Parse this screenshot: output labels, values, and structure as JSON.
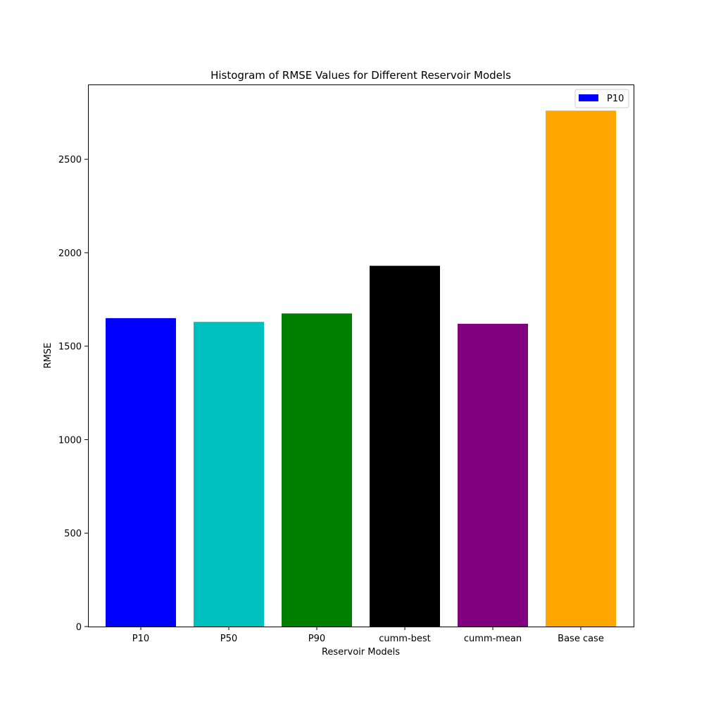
{
  "chart_data": {
    "type": "bar",
    "title": "Histogram of RMSE Values for Different Reservoir Models",
    "xlabel": "Reservoir Models",
    "ylabel": "RMSE",
    "categories": [
      "P10",
      "P50",
      "P90",
      "cumm-best",
      "cumm-mean",
      "Base case"
    ],
    "values": [
      1650,
      1630,
      1675,
      1930,
      1620,
      2760
    ],
    "colors": [
      "#0000ff",
      "#00bfbf",
      "#008000",
      "#000000",
      "#800080",
      "#ffa500"
    ],
    "ylim": [
      0,
      2900
    ],
    "yticks": [
      0,
      500,
      1000,
      1500,
      2000,
      2500
    ],
    "grid": false,
    "legend": {
      "position": "top-right",
      "entries": [
        {
          "label": "P10",
          "color": "#0000ff"
        }
      ]
    }
  }
}
